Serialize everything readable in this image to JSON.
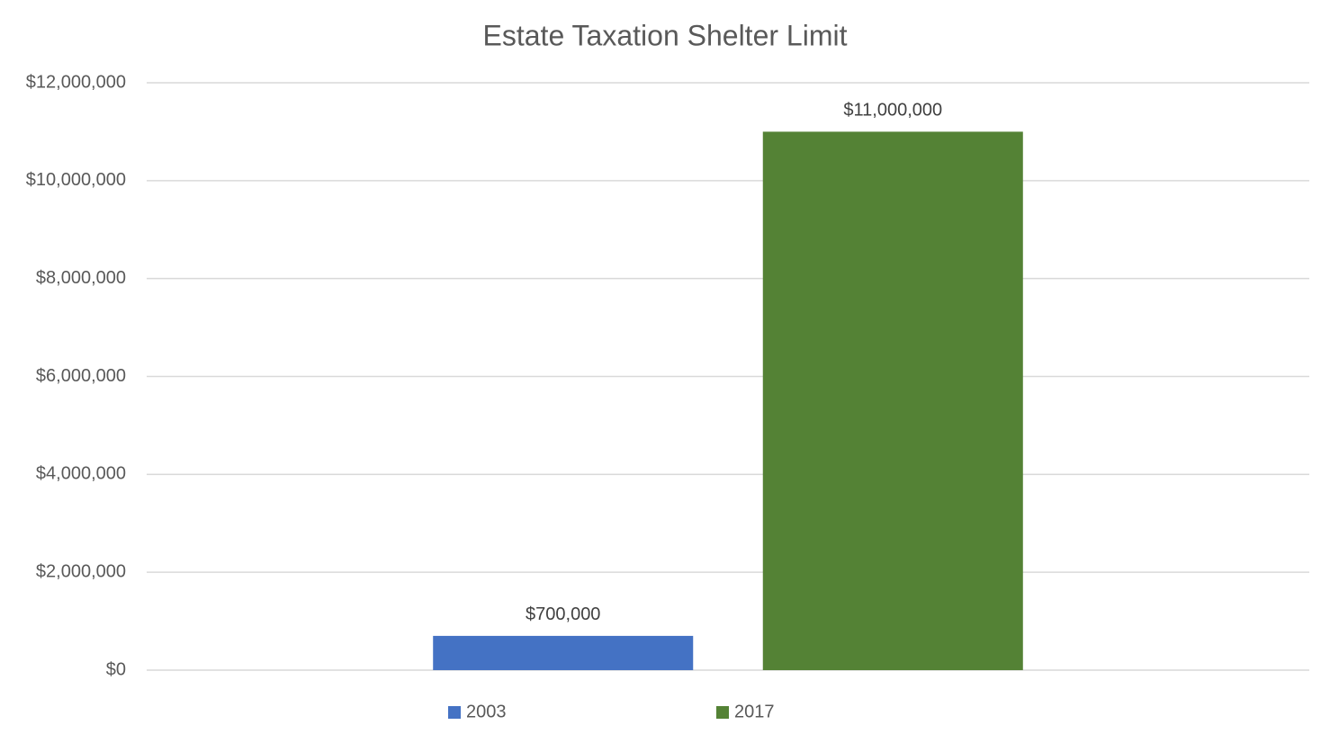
{
  "chart_data": {
    "type": "bar",
    "title": "Estate Taxation Shelter Limit",
    "categories": [
      null
    ],
    "series": [
      {
        "name": "2003",
        "color": "#4472c4",
        "values": [
          700000
        ],
        "value_labels": [
          "$700,000"
        ]
      },
      {
        "name": "2017",
        "color": "#548235",
        "values": [
          11000000
        ],
        "value_labels": [
          "$11,000,000"
        ]
      }
    ],
    "ylim": [
      0,
      12000000
    ],
    "yticks": [
      {
        "value": 0,
        "label": "$0"
      },
      {
        "value": 2000000,
        "label": "$2,000,000"
      },
      {
        "value": 4000000,
        "label": "$4,000,000"
      },
      {
        "value": 6000000,
        "label": "$6,000,000"
      },
      {
        "value": 8000000,
        "label": "$8,000,000"
      },
      {
        "value": 10000000,
        "label": "$10,000,000"
      },
      {
        "value": 12000000,
        "label": "$12,000,000"
      }
    ],
    "grid": true,
    "legend": "bottom"
  }
}
